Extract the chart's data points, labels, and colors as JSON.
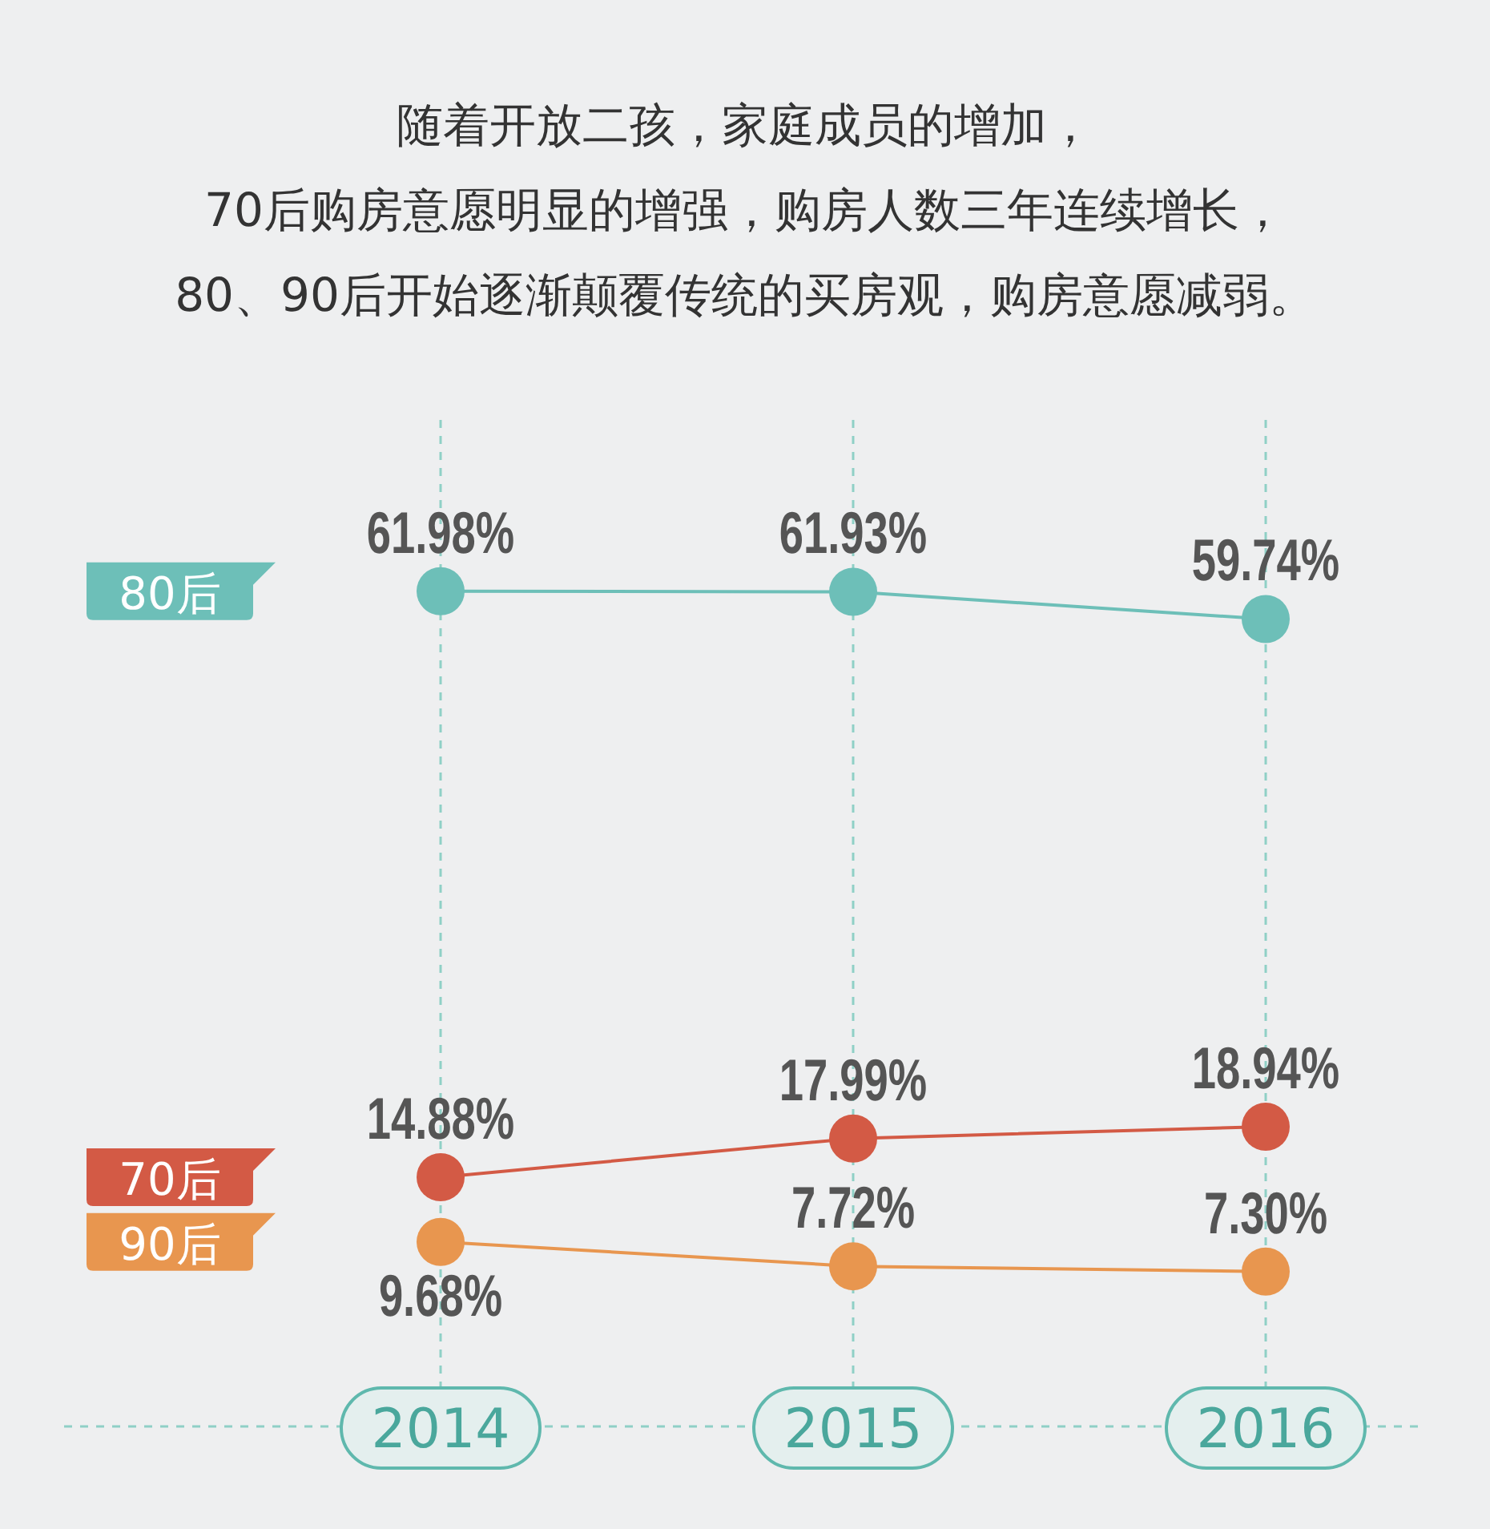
{
  "chart_data": {
    "type": "line",
    "title": "随着开放二孩，家庭成员的增加，\n70后购房意愿明显的增强，购房人数三年连续增长，\n80、90后开始逐渐颠覆传统的买房观，购房意愿减弱。",
    "categories": [
      "2014",
      "2015",
      "2016"
    ],
    "series": [
      {
        "name": "80后",
        "color": "#6dbfb8",
        "values": [
          61.98,
          61.93,
          59.74
        ],
        "value_labels": [
          "61.98%",
          "61.93%",
          "59.74%"
        ]
      },
      {
        "name": "70后",
        "color": "#d35a45",
        "values": [
          14.88,
          17.99,
          18.94
        ],
        "value_labels": [
          "14.88%",
          "17.99%",
          "18.94%"
        ]
      },
      {
        "name": "90后",
        "color": "#e8964f",
        "values": [
          9.68,
          7.72,
          7.3
        ],
        "value_labels": [
          "9.68%",
          "7.72%",
          "7.30%"
        ]
      }
    ],
    "marker": "circle",
    "line_style": "solid",
    "grid": "x",
    "legend": "left",
    "tick_labels": "x"
  }
}
